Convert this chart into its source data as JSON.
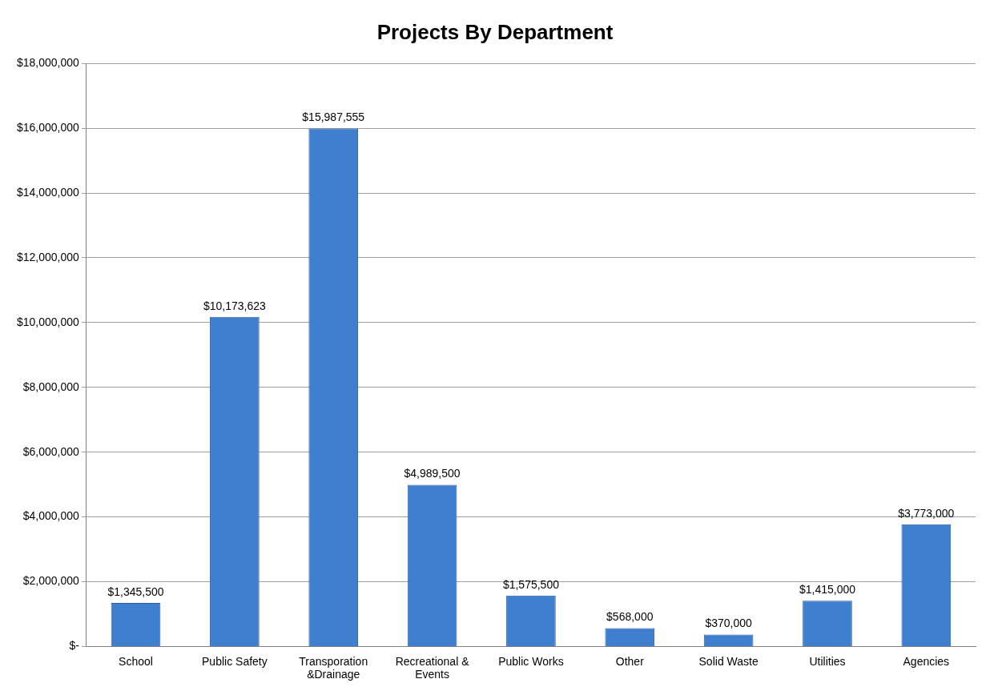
{
  "chart_data": {
    "type": "bar",
    "title": "Projects By Department",
    "categories": [
      "School",
      "Public Safety",
      "Transporation &Drainage",
      "Recreational & Events",
      "Public Works",
      "Other",
      "Solid Waste",
      "Utilities",
      "Agencies"
    ],
    "values": [
      1345500,
      10173623,
      15987555,
      4989500,
      1575500,
      568000,
      370000,
      1415000,
      3773000
    ],
    "value_labels": [
      "$1,345,500",
      "$10,173,623",
      "$15,987,555",
      "$4,989,500",
      "$1,575,500",
      "$568,000",
      "$370,000",
      "$1,415,000",
      "$3,773,000"
    ],
    "color": "#3f7fcf",
    "ylim": [
      0,
      18000000
    ],
    "yticks": [
      {
        "value": 0,
        "label": "$-"
      },
      {
        "value": 2000000,
        "label": "$2,000,000"
      },
      {
        "value": 4000000,
        "label": "$4,000,000"
      },
      {
        "value": 6000000,
        "label": "$6,000,000"
      },
      {
        "value": 8000000,
        "label": "$8,000,000"
      },
      {
        "value": 10000000,
        "label": "$10,000,000"
      },
      {
        "value": 12000000,
        "label": "$12,000,000"
      },
      {
        "value": 14000000,
        "label": "$14,000,000"
      },
      {
        "value": 16000000,
        "label": "$16,000,000"
      },
      {
        "value": 18000000,
        "label": "$18,000,000"
      }
    ],
    "grid": "y",
    "legend": false
  }
}
